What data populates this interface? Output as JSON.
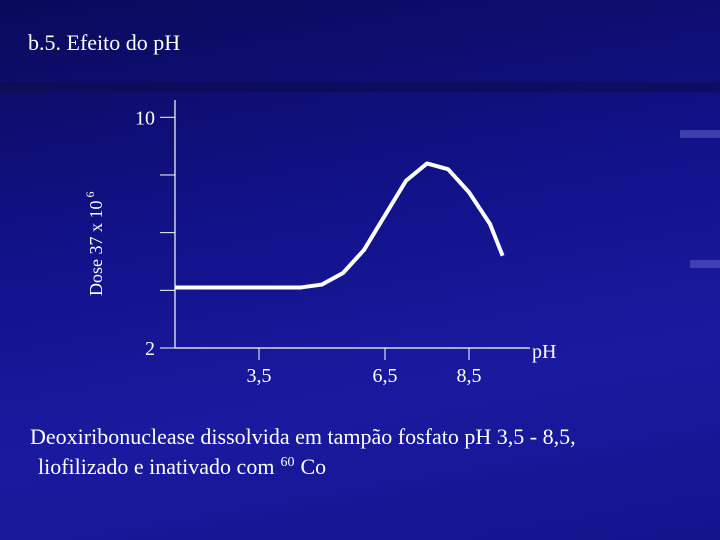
{
  "chart_data": {
    "type": "line",
    "title": "b.5. Efeito do pH",
    "y_label": "Dose 37 x 10",
    "y_label_exponent": "6",
    "x_label": "pH",
    "caption_line1": "Deoxiribonuclease dissolvida em tampão fosfato pH 3,5 - 8,5,",
    "caption_line2": "liofilizado e inativado com",
    "caption_superscript": "60",
    "caption_end": "Co",
    "x": [
      1.5,
      2.5,
      3.5,
      4.5,
      5.0,
      5.5,
      6.0,
      6.5,
      7.0,
      7.5,
      8.0,
      8.5,
      9.0,
      9.3
    ],
    "values": [
      4.1,
      4.1,
      4.1,
      4.1,
      4.2,
      4.6,
      5.4,
      6.6,
      7.8,
      8.4,
      8.2,
      7.4,
      6.3,
      5.2
    ],
    "color": "#ffffff",
    "xlim": [
      1.5,
      10
    ],
    "xticks": [
      {
        "value": 3.5,
        "label": "3,5"
      },
      {
        "value": 6.5,
        "label": "6,5"
      },
      {
        "value": 8.5,
        "label": "8,5"
      }
    ],
    "ylim": [
      2,
      10.6
    ],
    "yticks": [
      2,
      10
    ],
    "minor_yticks": [
      4,
      6,
      8
    ]
  }
}
